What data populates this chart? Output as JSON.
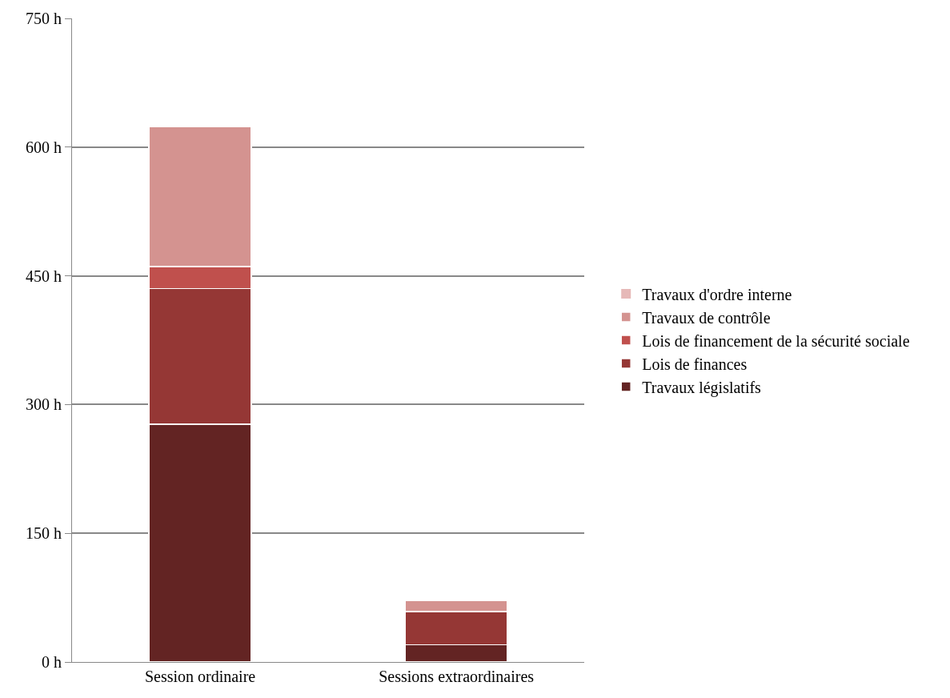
{
  "chart_data": {
    "type": "bar",
    "stacked": true,
    "categories": [
      "Session ordinaire",
      "Sessions extraordinaires"
    ],
    "series": [
      {
        "name": "Travaux législatifs",
        "color": "#632423",
        "values": [
          277,
          20
        ]
      },
      {
        "name": "Lois de finances",
        "color": "#953735",
        "values": [
          158,
          39
        ]
      },
      {
        "name": "Lois de financement de la sécurité sociale",
        "color": "#c0504d",
        "values": [
          26,
          null
        ]
      },
      {
        "name": "Travaux de contrôle",
        "color": "#d49390",
        "values": [
          163,
          13
        ]
      },
      {
        "name": "Travaux d'ordre interne",
        "color": "#e6b9b8",
        "values": [
          null,
          null
        ]
      }
    ],
    "ylim": [
      0,
      750
    ],
    "yticks": [
      {
        "value": 0,
        "label": "0 h"
      },
      {
        "value": 150,
        "label": "150 h"
      },
      {
        "value": 300,
        "label": "300 h"
      },
      {
        "value": 450,
        "label": "450 h"
      },
      {
        "value": 600,
        "label": "600 h"
      },
      {
        "value": 750,
        "label": "750 h"
      }
    ],
    "grid": "y",
    "legend": "right"
  }
}
